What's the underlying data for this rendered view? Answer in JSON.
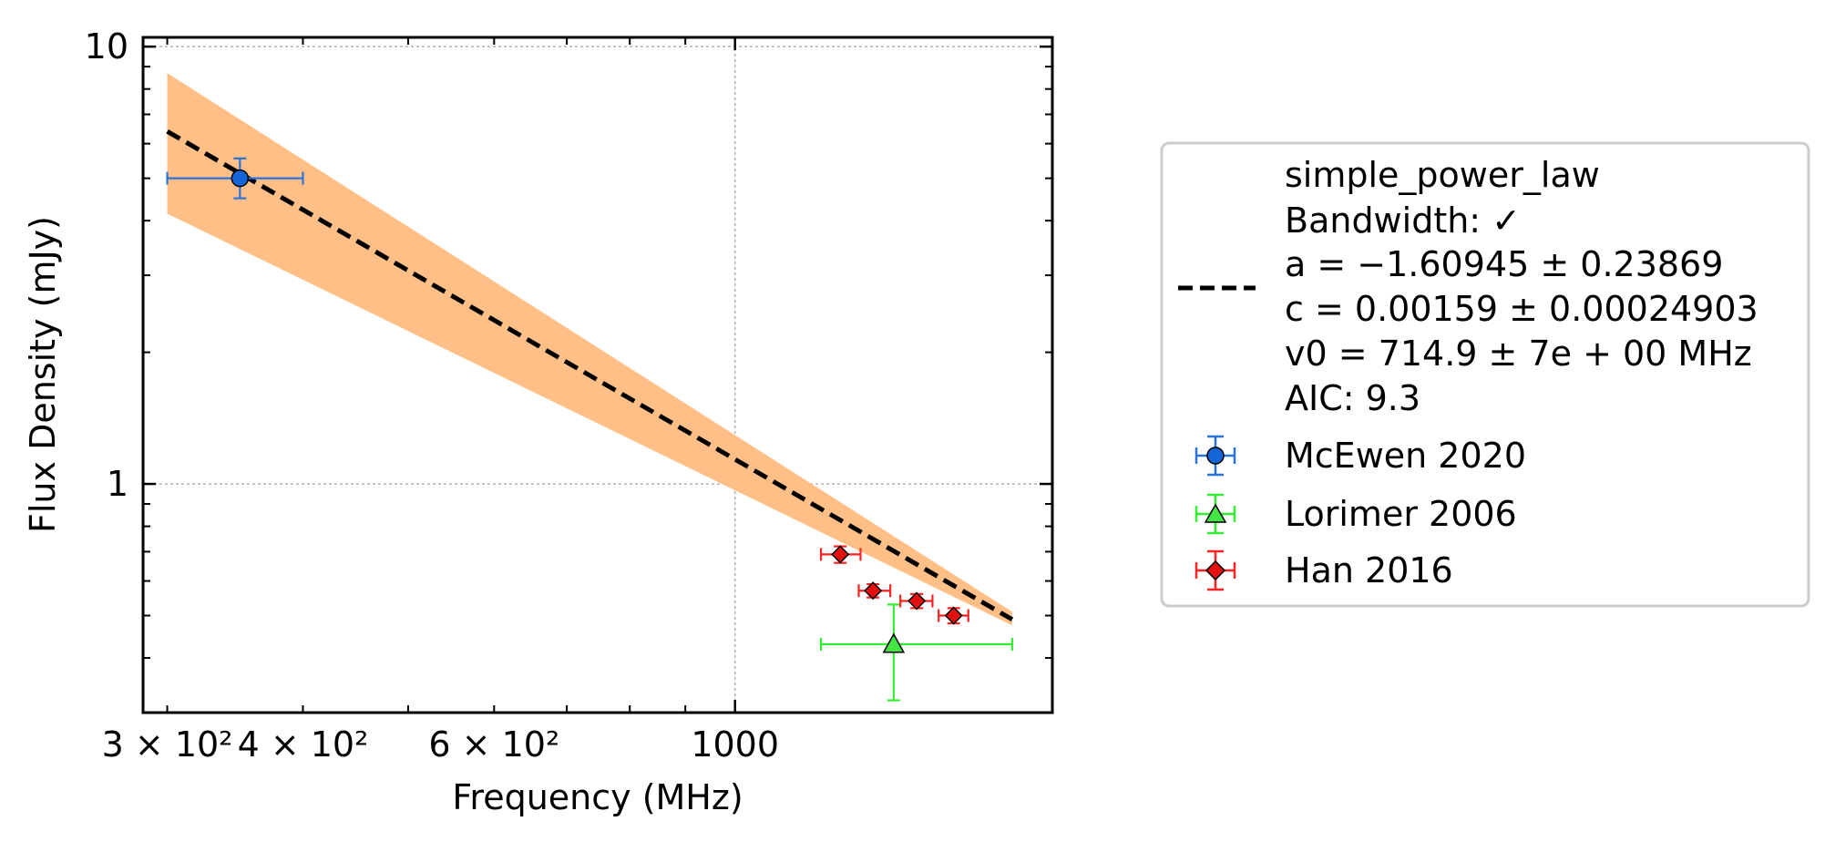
{
  "chart_data": {
    "type": "scatter",
    "xlabel": "Frequency (MHz)",
    "ylabel": "Flux Density (mJy)",
    "xscale": "log",
    "yscale": "log",
    "xlim": [
      285,
      1960
    ],
    "ylim": [
      0.3,
      10.5
    ],
    "grid": "major, dotted",
    "x_tick_labels": [
      {
        "value": 300,
        "label": "3 × 10²"
      },
      {
        "value": 400,
        "label": "4 × 10²"
      },
      {
        "value": 600,
        "label": "6 × 10²"
      },
      {
        "value": 1000,
        "label": "1000"
      }
    ],
    "y_tick_labels": [
      {
        "value": 1,
        "label": "1"
      },
      {
        "value": 10,
        "label": "10"
      }
    ],
    "fit": {
      "model": "simple_power_law",
      "a": -1.60945,
      "c": 0.00159,
      "v0": 714.9,
      "x_range": [
        300,
        1800
      ],
      "band_lower_at_300": 4.15,
      "band_upper_at_300": 8.7,
      "band_lower_at_1800": 0.475,
      "band_upper_at_1800": 0.51,
      "color_band": "#ffbf86",
      "color_line": "#000000"
    },
    "series": [
      {
        "name": "McEwen 2020",
        "marker": "circle",
        "color": "#1565d8",
        "error_color": "#2a74d8",
        "points": [
          {
            "x": 350,
            "y": 5.0,
            "xerr": [
              300,
              400
            ],
            "yerr": [
              4.5,
              5.55
            ]
          }
        ]
      },
      {
        "name": "Lorimer 2006",
        "marker": "triangle",
        "color": "#44e444",
        "error_color": "#33ee33",
        "points": [
          {
            "x": 1400,
            "y": 0.43,
            "xerr": [
              1200,
              1800
            ],
            "yerr": [
              0.32,
              0.53
            ]
          }
        ]
      },
      {
        "name": "Han 2016",
        "marker": "diamond",
        "color": "#e31010",
        "error_color": "#ff2222",
        "points": [
          {
            "x": 1250,
            "y": 0.69,
            "xerr": [
              1200,
              1305
            ],
            "yerr": [
              0.66,
              0.72
            ]
          },
          {
            "x": 1340,
            "y": 0.57,
            "xerr": [
              1300,
              1390
            ],
            "yerr": [
              0.55,
              0.59
            ]
          },
          {
            "x": 1470,
            "y": 0.54,
            "xerr": [
              1420,
              1520
            ],
            "yerr": [
              0.52,
              0.56
            ]
          },
          {
            "x": 1590,
            "y": 0.5,
            "xerr": [
              1540,
              1640
            ],
            "yerr": [
              0.48,
              0.52
            ]
          }
        ]
      }
    ],
    "legend": {
      "position": "right",
      "fit_lines": [
        "simple_power_law",
        "Bandwidth: ✓",
        "a = −1.60945 ± 0.23869",
        "c = 0.00159 ± 0.00024903",
        "v0 = 714.9 ± 7e + 00 MHz",
        "AIC: 9.3"
      ]
    }
  }
}
